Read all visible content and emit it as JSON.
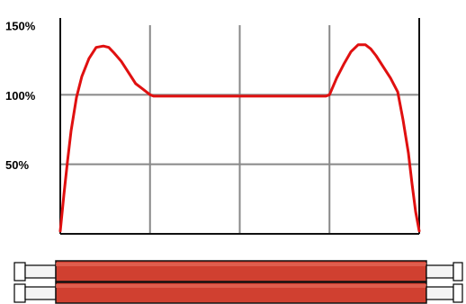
{
  "chart_data": {
    "type": "line",
    "title": "",
    "xlabel": "",
    "ylabel": "",
    "y_tick_labels": [
      "150%",
      "100%",
      "50%"
    ],
    "y_ticks": [
      150,
      100,
      50
    ],
    "ylim": [
      0,
      150
    ],
    "xlim": [
      0,
      1
    ],
    "x_gridlines": [
      0.25,
      0.5,
      0.75
    ],
    "y_gridlines": [
      100,
      50
    ],
    "grid": true,
    "legend": "none",
    "series": [
      {
        "color": "#e01010",
        "x": [
          0.0,
          0.01,
          0.02,
          0.03,
          0.045,
          0.06,
          0.08,
          0.1,
          0.12,
          0.135,
          0.15,
          0.17,
          0.19,
          0.21,
          0.23,
          0.25,
          0.26,
          0.5,
          0.74,
          0.75,
          0.77,
          0.79,
          0.81,
          0.83,
          0.85,
          0.865,
          0.88,
          0.9,
          0.92,
          0.94,
          0.955,
          0.97,
          0.98,
          0.99,
          1.0
        ],
        "y": [
          2,
          28,
          52,
          74,
          98,
          113,
          126,
          134,
          135,
          134,
          130,
          124,
          116,
          108,
          104,
          100,
          99,
          99,
          99,
          100,
          112,
          122,
          131,
          136,
          136,
          133,
          128,
          120,
          112,
          102,
          82,
          58,
          36,
          16,
          2
        ]
      }
    ]
  },
  "tube_image": {
    "tube_color": "#d04030",
    "cap_color": "#ffffff"
  }
}
